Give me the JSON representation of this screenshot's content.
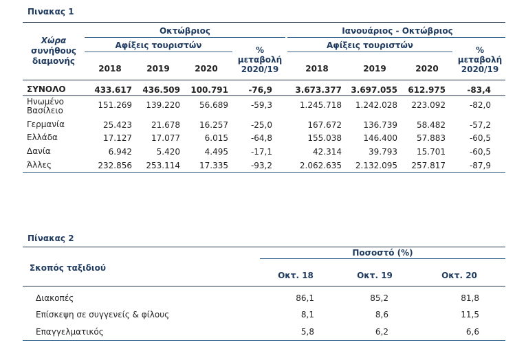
{
  "table1": {
    "title": "Πινακας 1",
    "country_header": [
      "Χώρα",
      "συνήθους",
      "διαμονής"
    ],
    "group1": "Οκτώβριος",
    "group2": "Ιανουάριος - Οκτώβριος",
    "sub_arrivals": "Αφίξεις τουριστών",
    "change_header": [
      "%",
      "μεταβολή",
      "2020/19"
    ],
    "years": [
      "2018",
      "2019",
      "2020"
    ],
    "rows": [
      {
        "label": [
          "ΣΥΝΟΛΟ"
        ],
        "bold": true,
        "v": [
          "433.617",
          "436.509",
          "100.791",
          "-76,9",
          "3.673.377",
          "3.697.055",
          "612.975",
          "-83,4"
        ]
      },
      {
        "label": [
          "Ηνωμένο",
          "Βασίλειο"
        ],
        "bold": false,
        "v": [
          "151.269",
          "139.220",
          "56.689",
          "-59,3",
          "1.245.718",
          "1.242.028",
          "223.092",
          "-82,0"
        ]
      },
      {
        "label": [
          "Γερμανία"
        ],
        "bold": false,
        "v": [
          "25.423",
          "21.678",
          "16.257",
          "-25,0",
          "167.672",
          "136.739",
          "58.482",
          "-57,2"
        ]
      },
      {
        "label": [
          "Ελλάδα"
        ],
        "bold": false,
        "v": [
          "17.127",
          "17.077",
          "6.015",
          "-64,8",
          "155.038",
          "146.400",
          "57.883",
          "-60,5"
        ]
      },
      {
        "label": [
          "Δανία"
        ],
        "bold": false,
        "v": [
          "6.942",
          "5.420",
          "4.495",
          "-17,1",
          "42.314",
          "39.793",
          "15.701",
          "-60,5"
        ]
      },
      {
        "label": [
          "Άλλες"
        ],
        "bold": false,
        "v": [
          "232.856",
          "253.114",
          "17.335",
          "-93,2",
          "2.062.635",
          "2.132.095",
          "257.817",
          "-87,9"
        ]
      }
    ]
  },
  "table2": {
    "title": "Πίνακας 2",
    "purpose_header": "Σκοπός ταξιδιού",
    "percent_header": "Ποσοστό (%)",
    "cols": [
      "Οκτ. 18",
      "Οκτ. 19",
      "Οκτ. 20"
    ],
    "rows": [
      {
        "label": "Διακοπές",
        "v": [
          "86,1",
          "85,2",
          "81,8"
        ]
      },
      {
        "label": "Επίσκεψη σε συγγενείς & φίλους",
        "v": [
          "8,1",
          "8,6",
          "11,5"
        ]
      },
      {
        "label": "Επαγγελματικός",
        "v": [
          "5,8",
          "6,2",
          "6,6"
        ]
      }
    ]
  }
}
